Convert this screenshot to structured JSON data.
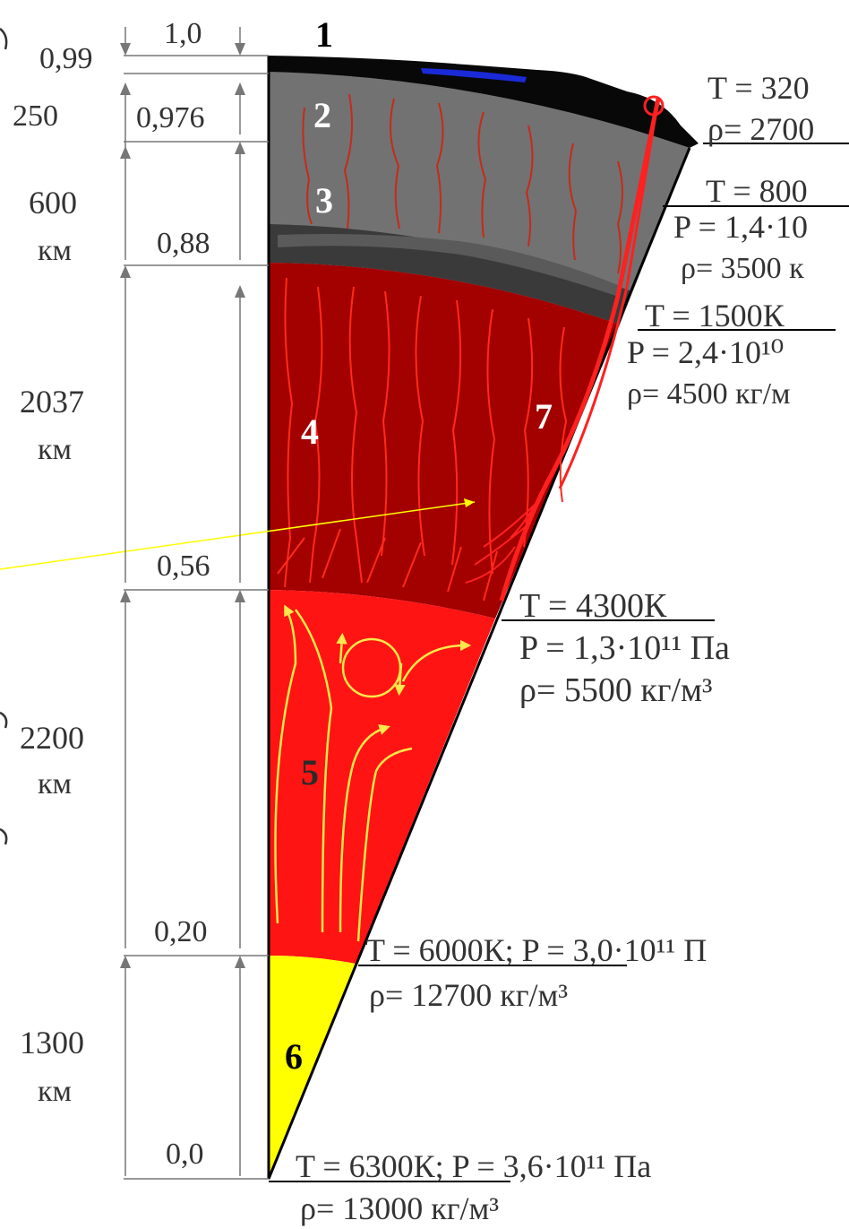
{
  "title": "",
  "colors": {
    "crust": "#0a0a0a",
    "upper_mantle": "#707070",
    "lower_mantle": "#a00000",
    "outer_core": "#ff1a1a",
    "inner_core": "#ffff00",
    "ocean": "#1a2ad8",
    "flow_arrows": "#ffe84a",
    "pointer_line": "#ffff00"
  },
  "left_scale": {
    "depths_km": [
      {
        "value": "250",
        "unit": ""
      },
      {
        "value": "600",
        "unit": "км"
      },
      {
        "value": "2037",
        "unit": "км"
      },
      {
        "value": "2200",
        "unit": "км"
      },
      {
        "value": "1300",
        "unit": "км"
      }
    ],
    "radii": [
      "1,0",
      "0,99",
      "0,976",
      "0,88",
      "0,56",
      "0,20",
      "0,0"
    ]
  },
  "layers": [
    {
      "number": "1",
      "name": "crust"
    },
    {
      "number": "2",
      "name": "layer-2"
    },
    {
      "number": "3",
      "name": "layer-3"
    },
    {
      "number": "4",
      "name": "lower-mantle"
    },
    {
      "number": "5",
      "name": "outer-core"
    },
    {
      "number": "6",
      "name": "inner-core"
    },
    {
      "number": "7",
      "name": "plume"
    }
  ],
  "boundaries": [
    {
      "line1": "T = 320",
      "line2": "ρ= 2700",
      "line3": ""
    },
    {
      "line1": "T = 800",
      "line2": "P = 1,4·10",
      "line3": "ρ= 3500 к"
    },
    {
      "line1": "T = 1500К",
      "line2": "P = 2,4·10¹⁰ ",
      "line3": "ρ= 4500 кг/м"
    },
    {
      "line1": "T = 4300К",
      "line2": "P = 1,3·10¹¹ Па",
      "line3": "ρ= 5500 кг/м³"
    },
    {
      "line1": "T = 6000К; P = 3,0·10¹¹ П",
      "line2": "ρ= 12700 кг/м³",
      "line3": ""
    },
    {
      "line1": "T = 6300К; P = 3,6·10¹¹ Па",
      "line2": "ρ= 13000 кг/м³",
      "line3": ""
    }
  ]
}
